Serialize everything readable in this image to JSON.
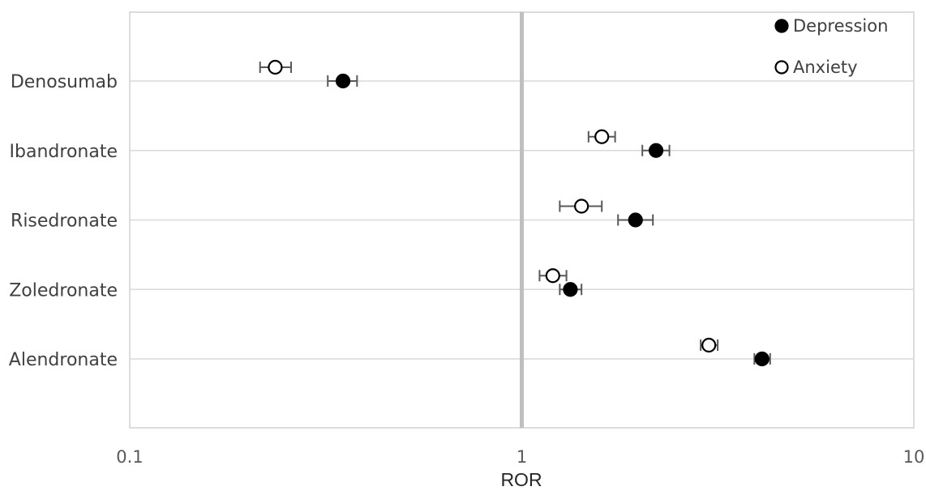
{
  "chart_data": {
    "type": "scatter",
    "xlabel": "ROR",
    "x_scale": "log",
    "xlim": [
      0.1,
      10
    ],
    "x_ticks": [
      "0.1",
      "1",
      "10"
    ],
    "reference_line": 1,
    "categories": [
      "Denosumab",
      "Ibandronate",
      "Risedronate",
      "Zoledronate",
      "Alendronate"
    ],
    "legend_position": "top-right",
    "grid": "horizontal",
    "series": [
      {
        "name": "Depression",
        "marker": "filled-circle",
        "color": "#000000",
        "points": [
          {
            "category": "Denosumab",
            "value": 0.35,
            "ci_low": 0.32,
            "ci_high": 0.38
          },
          {
            "category": "Ibandronate",
            "value": 2.2,
            "ci_low": 2.03,
            "ci_high": 2.38
          },
          {
            "category": "Risedronate",
            "value": 1.95,
            "ci_low": 1.76,
            "ci_high": 2.16
          },
          {
            "category": "Zoledronate",
            "value": 1.33,
            "ci_low": 1.25,
            "ci_high": 1.42
          },
          {
            "category": "Alendronate",
            "value": 4.1,
            "ci_low": 3.92,
            "ci_high": 4.3
          }
        ]
      },
      {
        "name": "Anxiety",
        "marker": "open-circle",
        "color": "#000000",
        "points": [
          {
            "category": "Denosumab",
            "value": 0.235,
            "ci_low": 0.215,
            "ci_high": 0.258
          },
          {
            "category": "Ibandronate",
            "value": 1.6,
            "ci_low": 1.48,
            "ci_high": 1.73
          },
          {
            "category": "Risedronate",
            "value": 1.42,
            "ci_low": 1.25,
            "ci_high": 1.6
          },
          {
            "category": "Zoledronate",
            "value": 1.2,
            "ci_low": 1.11,
            "ci_high": 1.3
          },
          {
            "category": "Alendronate",
            "value": 3.0,
            "ci_low": 2.86,
            "ci_high": 3.16
          }
        ]
      }
    ]
  }
}
